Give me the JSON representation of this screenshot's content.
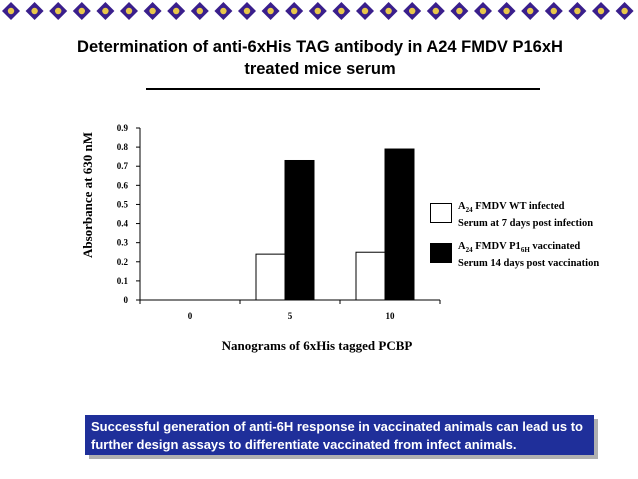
{
  "title": "Determination of anti-6xHis TAG antibody in A24 FMDV P16xH treated mice serum",
  "banner_text": "Successful generation of anti-6H response in vaccinated animals can lead us to further design assays to differentiate vaccinated from infect animals.",
  "colors": {
    "banner": "#1f2f9a",
    "series_wt": "#ffffff",
    "series_vacc": "#000000",
    "border_icon": "#3a1f8c"
  },
  "chart_data": {
    "type": "bar",
    "xlabel": "Nanograms of 6xHis tagged PCBP",
    "ylabel": "Absorbance at 630 nM",
    "categories": [
      "0",
      "5",
      "10"
    ],
    "ylim": [
      0,
      0.9
    ],
    "yticks": [
      "0",
      "0.1",
      "0.2",
      "0.3",
      "0.4",
      "0.5",
      "0.6",
      "0.7",
      "0.8",
      "0.9"
    ],
    "series": [
      {
        "name": "A24 FMDV WT infected Serum at 7 days post infection",
        "values": [
          0,
          0.24,
          0.25
        ]
      },
      {
        "name": "A24 FMDV P16H vaccinated Serum 14 days post vaccination",
        "values": [
          0,
          0.73,
          0.79
        ]
      }
    ]
  }
}
